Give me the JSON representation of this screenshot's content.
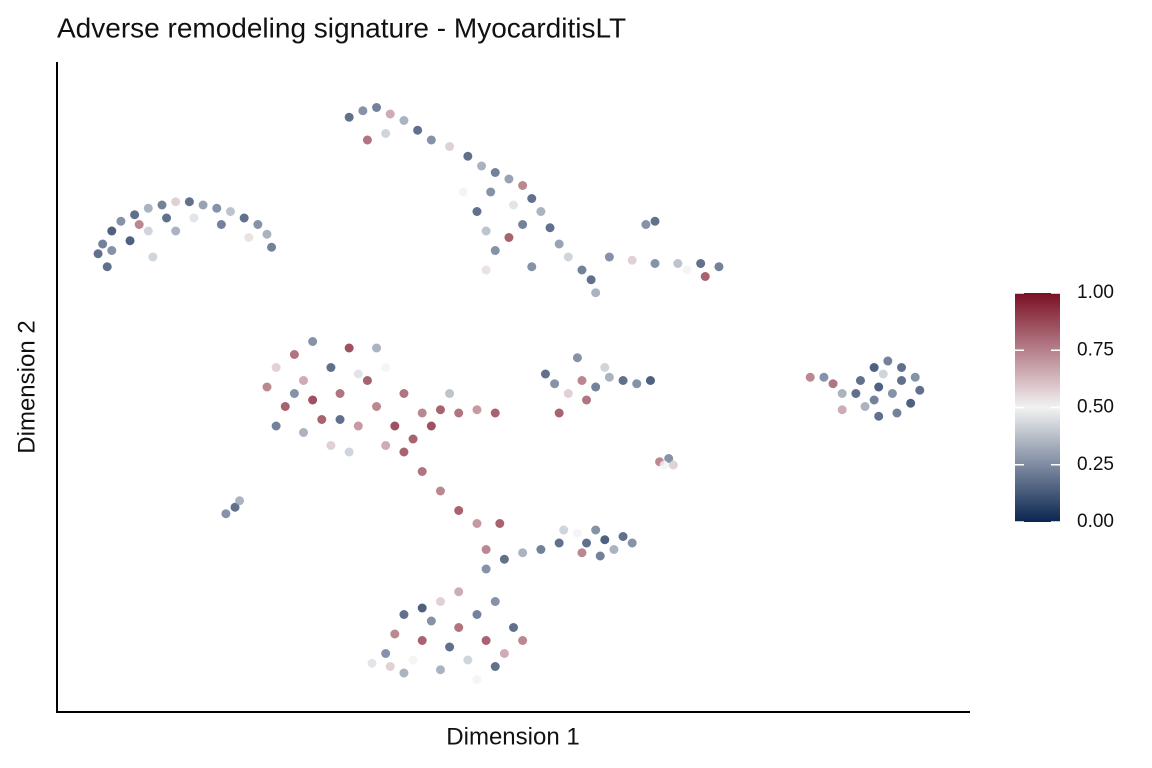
{
  "chart_data": {
    "type": "scatter",
    "title": "Adverse remodeling signature - MyocarditisLT",
    "x_label": "Dimension 1",
    "y_label": "Dimension 2",
    "xlim": [
      0,
      100
    ],
    "ylim": [
      0,
      100
    ],
    "colormap": [
      "#0b2550",
      "#f2f2f2",
      "#7a0f24"
    ],
    "clim": [
      0,
      1
    ],
    "colorbar_ticks": [
      {
        "value": 0,
        "label": "0.00"
      },
      {
        "value": 0.25,
        "label": "0.25"
      },
      {
        "value": 0.5,
        "label": "0.50"
      },
      {
        "value": 0.75,
        "label": "0.75"
      },
      {
        "value": 1,
        "label": "1.00"
      }
    ],
    "x": [
      4.5,
      5,
      6,
      7,
      8.5,
      10,
      11.5,
      13,
      14.5,
      16,
      17.5,
      19,
      20.5,
      22,
      23,
      23.5,
      6,
      8,
      10,
      12,
      15,
      18,
      21,
      5.5,
      9,
      13,
      10.5,
      32,
      33.5,
      35,
      36.5,
      38,
      39.5,
      34,
      36,
      41,
      43,
      45,
      46.5,
      48,
      49.5,
      51,
      52,
      50,
      47.5,
      46,
      47,
      48,
      49.5,
      51,
      53,
      54,
      55,
      56,
      57.5,
      58.5,
      59,
      47,
      52,
      44.5,
      60.5,
      63,
      65.5,
      68,
      70.5,
      72.5,
      71,
      69,
      64.5,
      65.5,
      23,
      24,
      25,
      26,
      27,
      28,
      29,
      30,
      31,
      32,
      33,
      30,
      27,
      34,
      35,
      36,
      37,
      38,
      39,
      36,
      40,
      42,
      44,
      46,
      48,
      41,
      38,
      40,
      42,
      44,
      46,
      32,
      26,
      24,
      35,
      28,
      33,
      31,
      43,
      47,
      48.5,
      53.5,
      54.5,
      56,
      57.5,
      59,
      60.5,
      62,
      63.5,
      65,
      60,
      58,
      57,
      55,
      88,
      89.5,
      91,
      92.5,
      94,
      94.5,
      93.5,
      92,
      90,
      88.5,
      87.5,
      90,
      91.5,
      92.5,
      89.5,
      85,
      84,
      82.5,
      86,
      86,
      90.5,
      36,
      37,
      38,
      39,
      40,
      41,
      42,
      42,
      43,
      44,
      45,
      46,
      47,
      48,
      49,
      50,
      51,
      38,
      46,
      40,
      44,
      48,
      36.5,
      34.5,
      47,
      49,
      51,
      53,
      55,
      57,
      58,
      59,
      60,
      61,
      62,
      59.5,
      57.5,
      63,
      55.5,
      18.5,
      19.5,
      20,
      66,
      67,
      67.5,
      66.5
    ],
    "y": [
      70.5,
      72,
      74,
      75.5,
      76.5,
      77.5,
      78,
      78.5,
      78.5,
      78,
      77.5,
      77,
      76,
      75,
      73.5,
      71.5,
      71,
      72.5,
      74,
      76,
      76,
      75,
      73,
      68.5,
      75,
      74,
      70,
      91.5,
      92.5,
      93,
      92,
      91,
      89.5,
      88,
      89,
      88,
      87,
      85.5,
      84,
      83,
      82,
      81,
      79,
      78,
      80,
      77,
      74,
      71,
      73,
      75,
      77,
      74.5,
      72,
      70,
      68,
      66.5,
      64.5,
      68,
      68.5,
      80,
      70,
      69.5,
      69,
      69,
      69,
      68.5,
      67,
      68,
      75,
      75.5,
      50,
      53,
      47,
      55,
      51,
      57,
      45,
      53,
      49,
      56,
      44,
      41,
      43,
      51,
      47,
      53,
      44,
      49,
      42,
      41,
      46,
      46.5,
      46,
      46.5,
      46,
      44,
      40,
      37,
      34,
      31,
      29,
      40,
      49,
      44,
      56,
      48,
      52,
      45,
      49,
      25,
      29,
      52,
      50.5,
      49,
      51,
      50,
      51.5,
      51,
      50.5,
      51,
      53,
      48,
      54.5,
      46,
      51,
      53,
      54,
      53,
      51.5,
      49.5,
      47.5,
      46,
      45.5,
      47,
      49,
      50,
      49,
      51,
      48,
      50.5,
      51.5,
      51.5,
      49,
      46.5,
      52,
      9,
      12,
      15,
      8,
      11,
      14,
      6.5,
      17,
      10,
      13,
      8,
      15,
      11,
      17,
      9,
      13,
      11,
      6,
      5,
      16,
      18.5,
      7,
      7,
      7.5,
      22,
      23.5,
      24.5,
      25,
      26,
      27.5,
      26,
      28,
      26.5,
      25,
      27,
      24,
      24.5,
      26,
      28,
      30.5,
      31.5,
      32.5,
      38.5,
      39,
      38,
      38
    ],
    "values": [
      0.1,
      0.15,
      0.05,
      0.2,
      0.1,
      0.3,
      0.15,
      0.6,
      0.1,
      0.25,
      0.2,
      0.35,
      0.1,
      0.2,
      0.3,
      0.15,
      0.2,
      0.05,
      0.4,
      0.1,
      0.45,
      0.15,
      0.55,
      0.1,
      0.8,
      0.3,
      0.4,
      0.1,
      0.2,
      0.15,
      0.7,
      0.3,
      0.1,
      0.85,
      0.4,
      0.2,
      0.6,
      0.1,
      0.3,
      0.15,
      0.25,
      0.8,
      0.1,
      0.45,
      0.2,
      0.1,
      0.35,
      0.2,
      0.9,
      0.15,
      0.3,
      0.1,
      0.25,
      0.4,
      0.15,
      0.1,
      0.3,
      0.55,
      0.2,
      0.5,
      0.2,
      0.6,
      0.2,
      0.35,
      0.1,
      0.15,
      0.9,
      0.5,
      0.2,
      0.1,
      0.8,
      0.6,
      0.9,
      0.85,
      0.7,
      0.2,
      0.9,
      0.1,
      0.85,
      0.95,
      0.75,
      0.6,
      0.3,
      0.9,
      0.8,
      0.5,
      0.95,
      0.85,
      0.9,
      0.7,
      0.8,
      0.9,
      0.85,
      0.75,
      0.9,
      0.95,
      0.9,
      0.85,
      0.8,
      0.9,
      0.75,
      0.4,
      0.2,
      0.15,
      0.3,
      0.95,
      0.45,
      0.1,
      0.35,
      0.8,
      0.9,
      0.1,
      0.2,
      0.6,
      0.8,
      0.15,
      0.3,
      0.1,
      0.2,
      0.05,
      0.4,
      0.85,
      0.2,
      0.9,
      0.1,
      0.05,
      0.15,
      0.1,
      0.2,
      0.1,
      0.05,
      0.15,
      0.1,
      0.3,
      0.1,
      0.05,
      0.2,
      0.1,
      0.15,
      0.85,
      0.2,
      0.8,
      0.3,
      0.7,
      0.4,
      0.2,
      0.8,
      0.1,
      0.5,
      0.9,
      0.2,
      0.3,
      0.6,
      0.1,
      0.85,
      0.4,
      0.15,
      0.9,
      0.2,
      0.7,
      0.1,
      0.8,
      0.3,
      0.5,
      0.05,
      0.7,
      0.1,
      0.6,
      0.45,
      0.2,
      0.1,
      0.3,
      0.15,
      0.1,
      0.5,
      0.1,
      0.2,
      0.05,
      0.3,
      0.1,
      0.15,
      0.8,
      0.2,
      0.4,
      0.2,
      0.1,
      0.3,
      0.8,
      0.2,
      0.6,
      0.5
    ]
  }
}
